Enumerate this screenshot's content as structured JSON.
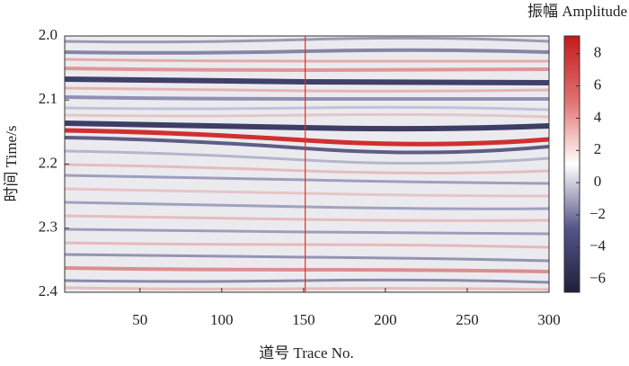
{
  "chart_data": {
    "type": "heatmap",
    "title": "振幅 Amplitude",
    "xlabel": "道号 Trace No.",
    "ylabel": "时间 Time/s",
    "xlim": [
      4,
      300
    ],
    "xticks": [
      50,
      100,
      150,
      200,
      250,
      300
    ],
    "ylim": [
      2.0,
      2.4
    ],
    "yticks": [
      {
        "value": 2.0,
        "label": "2.0"
      },
      2.1,
      2.2,
      2.3,
      {
        "value": 2.4,
        "label": "2.4"
      }
    ],
    "y_inverted": true,
    "reference_line": {
      "x": 151,
      "color": "#e03020"
    },
    "colorbar": {
      "clim": [
        -6.8,
        9.1
      ],
      "ticks": [
        8,
        6,
        4,
        2,
        0,
        {
          "value": -2,
          "label": "−2"
        },
        {
          "value": -4,
          "label": "−4"
        },
        {
          "value": -6,
          "label": "−6"
        }
      ],
      "colormap": [
        "#1f1f3a",
        "#55558a",
        "#ffffff",
        "#e07070",
        "#c41a1a"
      ]
    }
  }
}
